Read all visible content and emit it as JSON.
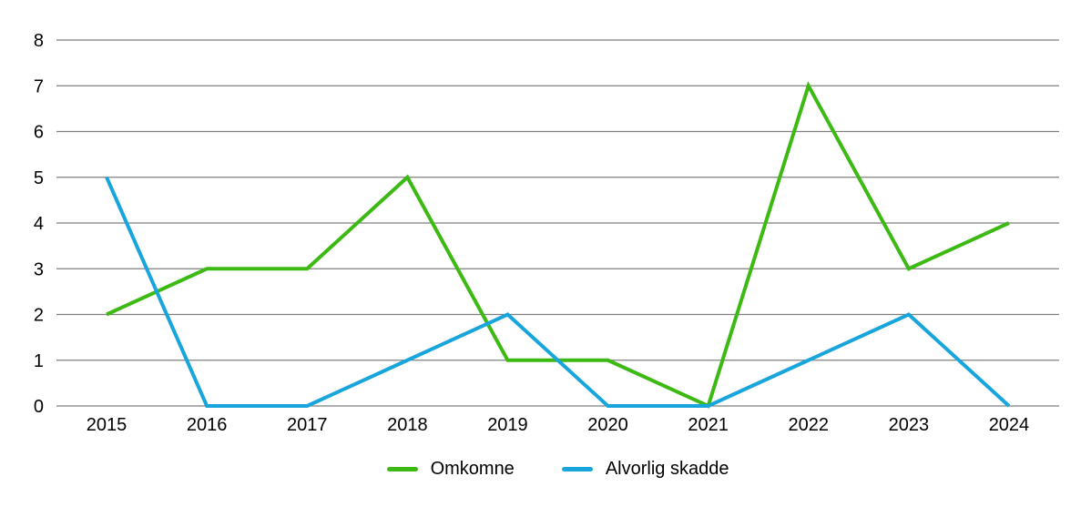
{
  "chart_data": {
    "type": "line",
    "categories": [
      "2015",
      "2016",
      "2017",
      "2018",
      "2019",
      "2020",
      "2021",
      "2022",
      "2023",
      "2024"
    ],
    "series": [
      {
        "name": "Omkomne",
        "color": "#3cb913",
        "values": [
          2,
          3,
          3,
          5,
          1,
          1,
          0,
          7,
          3,
          4
        ]
      },
      {
        "name": "Alvorlig skadde",
        "color": "#18a5dc",
        "values": [
          5,
          0,
          0,
          1,
          2,
          0,
          0,
          1,
          2,
          0
        ]
      }
    ],
    "ylim": [
      0,
      8
    ],
    "yticks": [
      0,
      1,
      2,
      3,
      4,
      5,
      6,
      7,
      8
    ],
    "grid": true,
    "legend_position": "bottom",
    "line_width": 4,
    "gridline_color": "#7f7f7f",
    "text_color": "#000000",
    "background_color": "#ffffff"
  }
}
